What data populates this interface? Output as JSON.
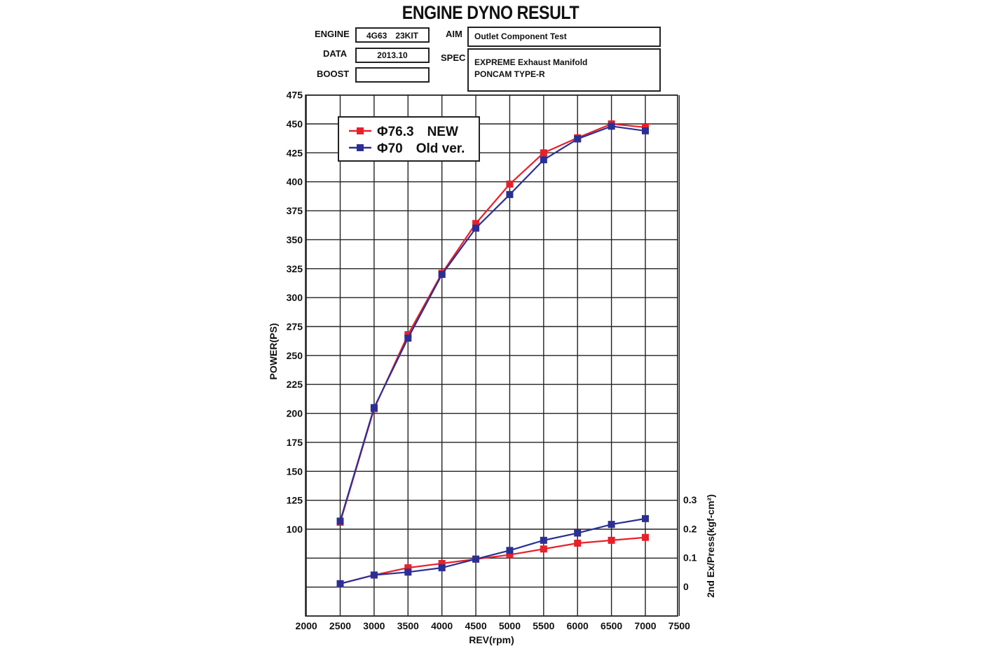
{
  "header": {
    "title": "ENGINE DYNO RESULT",
    "engine_label": "ENGINE",
    "engine_value": "4G63　23KIT",
    "data_label": "DATA",
    "data_value": "2013.10",
    "boost_label": "BOOST",
    "boost_value": "",
    "aim_label": "AIM",
    "aim_value": "Outlet Component Test",
    "spec_label": "SPEC",
    "spec_line1": "EXPREME Exhaust Manifold",
    "spec_line2": "PONCAM TYPE-R"
  },
  "chart_data": {
    "type": "line",
    "title": "ENGINE DYNO RESULT",
    "xlabel": "REV(rpm)",
    "ylabel": "POWER(PS)",
    "y2label": "2nd Ex/Press(kgf-cm²)",
    "xlim": [
      2000,
      7500
    ],
    "ylim": [
      50,
      475
    ],
    "y2lim": [
      0,
      0.3
    ],
    "grid": true,
    "legend_position": "top-left",
    "x_ticks": [
      2000,
      2500,
      3000,
      3500,
      4000,
      4500,
      5000,
      5500,
      6000,
      6500,
      7000,
      7500
    ],
    "y_ticks": [
      100,
      125,
      150,
      175,
      200,
      225,
      250,
      275,
      300,
      325,
      350,
      375,
      400,
      425,
      450,
      475
    ],
    "y2_ticks": [
      0,
      0.1,
      0.2,
      0.3
    ],
    "x": [
      2500,
      3000,
      3500,
      4000,
      4500,
      5000,
      5500,
      6000,
      6500,
      7000
    ],
    "series": [
      {
        "name": "Φ76.3　NEW",
        "axis": "power",
        "color": "#e8202a",
        "values": [
          106,
          204,
          268,
          321,
          364,
          398,
          425,
          438,
          450,
          447
        ]
      },
      {
        "name": "Φ70　Old ver.",
        "axis": "power",
        "color": "#2b2f94",
        "values": [
          107,
          205,
          265,
          320,
          360,
          389,
          419,
          437,
          448,
          444
        ]
      },
      {
        "name": "Φ76.3　NEW",
        "axis": "pressure",
        "color": "#e8202a",
        "values": [
          0.01,
          0.04,
          0.065,
          0.08,
          0.095,
          0.11,
          0.13,
          0.15,
          0.16,
          0.17
        ]
      },
      {
        "name": "Φ70　Old ver.",
        "axis": "pressure",
        "color": "#2b2f94",
        "values": [
          0.01,
          0.04,
          0.05,
          0.065,
          0.095,
          0.125,
          0.16,
          0.185,
          0.215,
          0.235
        ]
      }
    ],
    "legend": [
      {
        "label": "Φ76.3　NEW",
        "color": "#e8202a"
      },
      {
        "label": "Φ70　Old ver.",
        "color": "#2b2f94"
      }
    ]
  }
}
